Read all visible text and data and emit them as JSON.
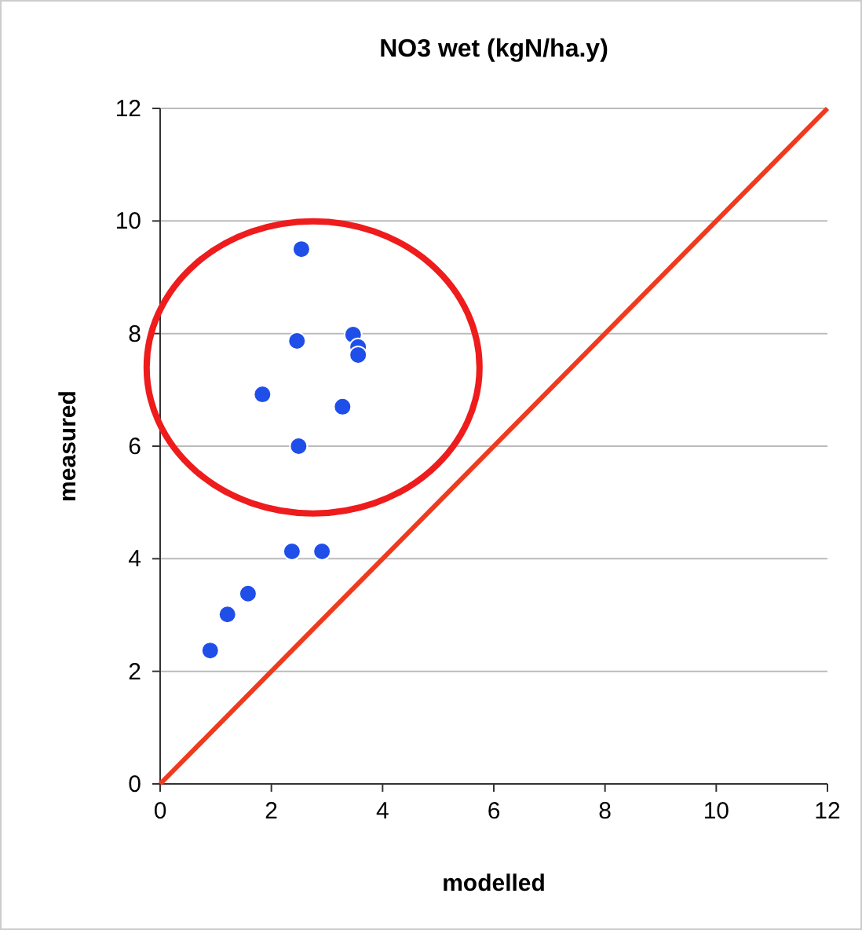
{
  "chart_data": {
    "type": "scatter",
    "title": "NO3 wet (kgN/ha.y)",
    "xlabel": "modelled",
    "ylabel": "measured",
    "xlim": [
      0,
      12
    ],
    "xticks": [
      0,
      2,
      4,
      6,
      8,
      10,
      12
    ],
    "ylim": [
      0,
      12
    ],
    "yticks": [
      0,
      2,
      4,
      6,
      8,
      10,
      12
    ],
    "grid": "y",
    "series": [
      {
        "marker": "circle",
        "color": "#1f4fe8",
        "x": [
          2.54,
          2.46,
          3.47,
          3.56,
          3.56,
          1.84,
          3.28,
          2.49,
          2.37,
          2.91,
          1.58,
          1.21,
          0.9
        ],
        "values": [
          9.5,
          7.87,
          7.98,
          7.76,
          7.62,
          6.92,
          6.7,
          6.0,
          4.13,
          4.13,
          3.38,
          3.01,
          2.37
        ]
      },
      {
        "type": "line",
        "color": "#f03a1e",
        "x": [
          0,
          12
        ],
        "values": [
          0,
          12
        ],
        "line_style": "solid"
      }
    ]
  }
}
